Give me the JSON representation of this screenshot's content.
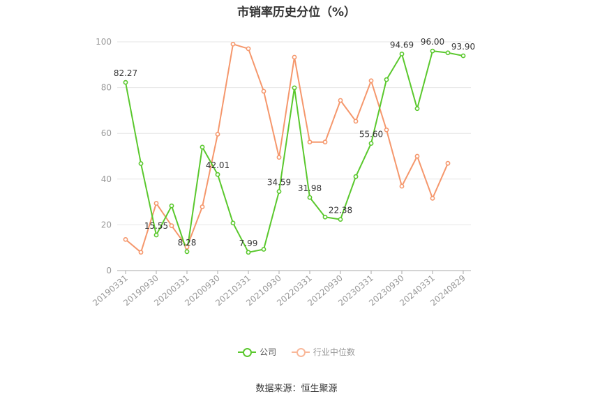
{
  "chart_data": {
    "type": "line",
    "title": "市销率历史分位（%）",
    "x": [
      "20190331",
      "20190630",
      "20190930",
      "20191231",
      "20200331",
      "20200630",
      "20200930",
      "20201231",
      "20210331",
      "20210630",
      "20210930",
      "20211231",
      "20220331",
      "20220630",
      "20220930",
      "20221231",
      "20230331",
      "20230630",
      "20230930",
      "20231231",
      "20240331",
      "20240630",
      "20240829"
    ],
    "x_tick_labels": [
      "20190331",
      "20190930",
      "20200331",
      "20200930",
      "20210331",
      "20210930",
      "20220331",
      "20220930",
      "20230331",
      "20230930",
      "20240331",
      "20240829"
    ],
    "ylim": [
      0,
      100
    ],
    "y_ticks": [
      0,
      20,
      40,
      60,
      80,
      100
    ],
    "grid": true,
    "legend_position": "bottom",
    "series": [
      {
        "name": "公司",
        "color": "#5ac82d",
        "values": [
          82.27,
          46.8,
          15.55,
          28.3,
          8.28,
          54.0,
          42.01,
          20.8,
          7.99,
          9.3,
          34.59,
          79.9,
          31.98,
          23.4,
          22.38,
          41.1,
          55.6,
          83.5,
          94.69,
          70.8,
          96.0,
          95.2,
          93.9
        ]
      },
      {
        "name": "行业中位数",
        "color": "#f5976c",
        "values": [
          13.6,
          8.0,
          29.4,
          19.6,
          10.3,
          27.9,
          59.6,
          99.0,
          97.0,
          78.4,
          49.5,
          93.3,
          56.2,
          56.2,
          74.4,
          65.3,
          83.0,
          61.5,
          36.9,
          50.0,
          31.6,
          46.9,
          null
        ]
      }
    ],
    "annotations": [
      {
        "series": 0,
        "index": 0,
        "text": "82.27"
      },
      {
        "series": 0,
        "index": 2,
        "text": "15.55"
      },
      {
        "series": 0,
        "index": 4,
        "text": "8.28"
      },
      {
        "series": 0,
        "index": 6,
        "text": "42.01"
      },
      {
        "series": 0,
        "index": 8,
        "text": "7.99"
      },
      {
        "series": 0,
        "index": 10,
        "text": "34.59"
      },
      {
        "series": 0,
        "index": 12,
        "text": "31.98"
      },
      {
        "series": 0,
        "index": 14,
        "text": "22.38"
      },
      {
        "series": 0,
        "index": 16,
        "text": "55.60"
      },
      {
        "series": 0,
        "index": 18,
        "text": "94.69"
      },
      {
        "series": 0,
        "index": 20,
        "text": "96.00"
      },
      {
        "series": 0,
        "index": 22,
        "text": "93.90"
      }
    ]
  },
  "legend": {
    "items": [
      "公司",
      "行业中位数"
    ]
  },
  "source": "数据来源：恒生聚源"
}
